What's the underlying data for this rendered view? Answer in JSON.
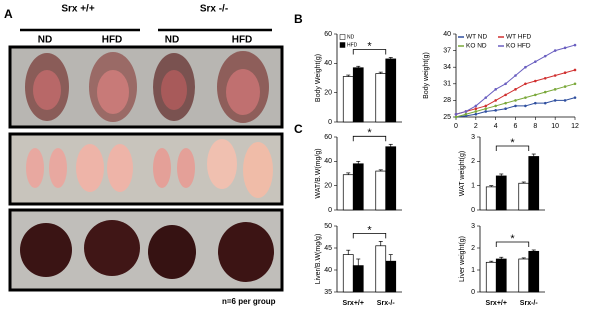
{
  "figure": {
    "panel_a": "A",
    "panel_b": "B",
    "panel_c": "C",
    "genotype_wt": "Srx +/+",
    "genotype_ko": "Srx -/-",
    "diet": [
      "ND",
      "HFD",
      "ND",
      "HFD"
    ],
    "note": "n=6 per group"
  },
  "chart_data": [
    {
      "type": "bar",
      "y_label": "Body Weight(g)",
      "categories": [
        null,
        null
      ],
      "series": [
        {
          "name": "ND",
          "color": "#ffffff",
          "values": [
            31,
            33
          ],
          "errors": [
            1,
            1
          ]
        },
        {
          "name": "HFD",
          "color": "#000000",
          "values": [
            37,
            43
          ],
          "errors": [
            1,
            1
          ]
        }
      ],
      "ylim": [
        0,
        60
      ],
      "yticks": [
        0,
        20,
        40,
        60
      ],
      "annotation": "*",
      "legend": "upper left"
    },
    {
      "type": "line",
      "y_label": "Body weight(g)",
      "x": [
        0,
        1,
        2,
        3,
        4,
        5,
        6,
        7,
        8,
        9,
        10,
        11,
        12
      ],
      "series": [
        {
          "name": "WT ND",
          "color": "#2f4f9f",
          "values": [
            25,
            25.2,
            25.5,
            26,
            26.2,
            26.5,
            27,
            27,
            27.5,
            27.5,
            28,
            28,
            28.5
          ]
        },
        {
          "name": "WT HFD",
          "color": "#d03030",
          "values": [
            25.5,
            26,
            26.5,
            27,
            28,
            29,
            30,
            31,
            31.5,
            32,
            32.5,
            33,
            33.5
          ]
        },
        {
          "name": "KO ND",
          "color": "#7aa83a",
          "values": [
            25,
            25.5,
            26,
            26.5,
            27,
            27.5,
            28,
            28.5,
            29,
            29.5,
            30,
            30.5,
            31
          ]
        },
        {
          "name": "KO HFD",
          "color": "#6a5fc0",
          "values": [
            25.5,
            26,
            27,
            28.5,
            30,
            31,
            32.5,
            34,
            35,
            36,
            37,
            37.5,
            38
          ]
        }
      ],
      "xlim": [
        0,
        12
      ],
      "xticks": [
        0,
        2,
        4,
        6,
        8,
        10,
        12
      ],
      "ylim": [
        25,
        40
      ],
      "yticks": [
        25,
        28,
        31,
        34,
        37,
        40
      ],
      "legend": "upper left"
    },
    {
      "type": "bar",
      "y_label": "WAT/B.W(mg/g)",
      "categories": [
        null,
        null
      ],
      "series": [
        {
          "color": "#ffffff",
          "values": [
            29,
            32
          ],
          "errors": [
            1.5,
            1
          ]
        },
        {
          "color": "#000000",
          "values": [
            38,
            52
          ],
          "errors": [
            2,
            2
          ]
        }
      ],
      "ylim": [
        0,
        60
      ],
      "yticks": [
        0,
        20,
        40,
        60
      ],
      "annotation": "*"
    },
    {
      "type": "bar",
      "y_label": "WAT weight(g)",
      "categories": [
        null,
        null
      ],
      "series": [
        {
          "color": "#ffffff",
          "values": [
            0.95,
            1.1
          ],
          "errors": [
            0.05,
            0.05
          ]
        },
        {
          "color": "#000000",
          "values": [
            1.4,
            2.2
          ],
          "errors": [
            0.08,
            0.1
          ]
        }
      ],
      "ylim": [
        0,
        3
      ],
      "yticks": [
        0,
        1,
        2,
        3
      ],
      "annotation": "*"
    },
    {
      "type": "bar",
      "y_label": "Liver/B.W(mg/g)",
      "categories": [
        "Srx+/+",
        "Srx-/-"
      ],
      "series": [
        {
          "color": "#ffffff",
          "values": [
            43.5,
            45.5
          ],
          "errors": [
            1,
            1
          ]
        },
        {
          "color": "#000000",
          "values": [
            41,
            42
          ],
          "errors": [
            1.5,
            1.5
          ]
        }
      ],
      "ylim": [
        35,
        50
      ],
      "yticks": [
        35,
        40,
        45,
        50
      ],
      "annotation": "*"
    },
    {
      "type": "bar",
      "y_label": "Liver weight(g)",
      "categories": [
        "Srx+/+",
        "Srx-/-"
      ],
      "series": [
        {
          "color": "#ffffff",
          "values": [
            1.35,
            1.5
          ],
          "errors": [
            0.05,
            0.05
          ]
        },
        {
          "color": "#000000",
          "values": [
            1.5,
            1.85
          ],
          "errors": [
            0.08,
            0.06
          ]
        }
      ],
      "ylim": [
        0,
        3
      ],
      "yticks": [
        0,
        1,
        2,
        3
      ],
      "annotation": "*"
    }
  ]
}
